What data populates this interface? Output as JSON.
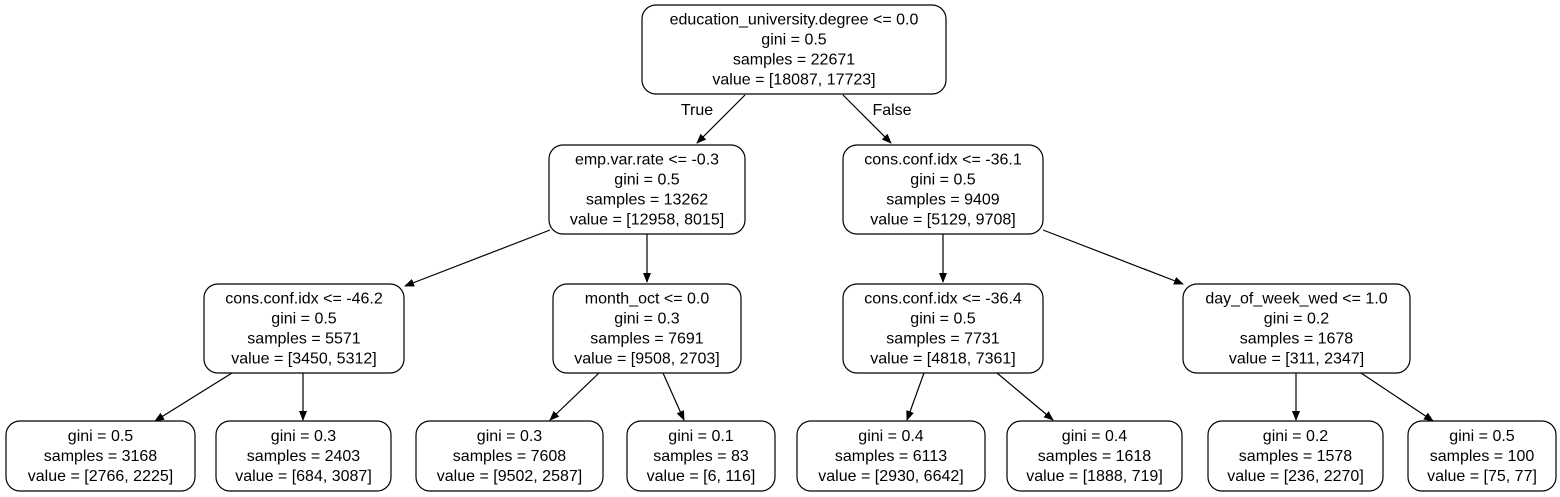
{
  "tree": {
    "root_edge_labels": {
      "true": "True",
      "false": "False"
    },
    "nodes": {
      "n0": [
        "education_university.degree <= 0.0",
        "gini = 0.5",
        "samples = 22671",
        "value = [18087, 17723]"
      ],
      "n1": [
        "emp.var.rate <= -0.3",
        "gini = 0.5",
        "samples = 13262",
        "value = [12958, 8015]"
      ],
      "n2": [
        "cons.conf.idx <= -36.1",
        "gini = 0.5",
        "samples = 9409",
        "value = [5129, 9708]"
      ],
      "n3": [
        "cons.conf.idx <= -46.2",
        "gini = 0.5",
        "samples = 5571",
        "value = [3450, 5312]"
      ],
      "n4": [
        "month_oct <= 0.0",
        "gini = 0.3",
        "samples = 7691",
        "value = [9508, 2703]"
      ],
      "n5": [
        "cons.conf.idx <= -36.4",
        "gini = 0.5",
        "samples = 7731",
        "value = [4818, 7361]"
      ],
      "n6": [
        "day_of_week_wed <= 1.0",
        "gini = 0.2",
        "samples = 1678",
        "value = [311, 2347]"
      ],
      "n7": [
        "gini = 0.5",
        "samples = 3168",
        "value = [2766, 2225]"
      ],
      "n8": [
        "gini = 0.3",
        "samples = 2403",
        "value = [684, 3087]"
      ],
      "n9": [
        "gini = 0.3",
        "samples = 7608",
        "value = [9502, 2587]"
      ],
      "n10": [
        "gini = 0.1",
        "samples = 83",
        "value = [6, 116]"
      ],
      "n11": [
        "gini = 0.4",
        "samples = 6113",
        "value = [2930, 6642]"
      ],
      "n12": [
        "gini = 0.4",
        "samples = 1618",
        "value = [1888, 719]"
      ],
      "n13": [
        "gini = 0.2",
        "samples = 1578",
        "value = [236, 2270]"
      ],
      "n14": [
        "gini = 0.5",
        "samples = 100",
        "value = [75, 77]"
      ]
    }
  }
}
